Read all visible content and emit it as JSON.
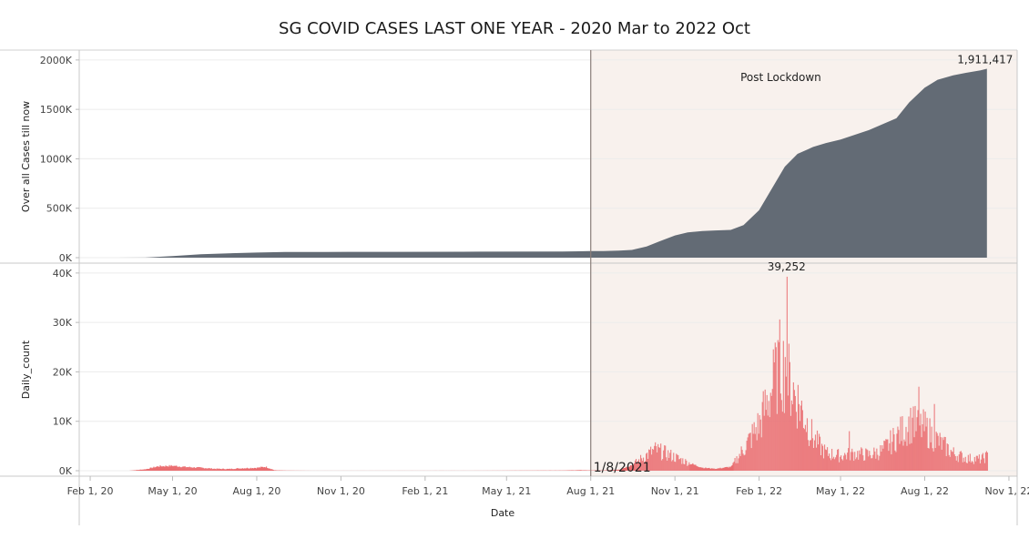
{
  "title": "SG COVID CASES LAST ONE YEAR - 2020 Mar to 2022 Oct",
  "chart_data": [
    {
      "type": "area",
      "title": "",
      "xlabel": "",
      "ylabel": "Over all Cases till now",
      "ylim": [
        0,
        2100000
      ],
      "yticks": [
        0,
        500000,
        1000000,
        1500000,
        2000000
      ],
      "ytick_labels": [
        "0K",
        "500K",
        "1000K",
        "1500K",
        "2000K"
      ],
      "color": "#636b75",
      "grid": "horizontal",
      "series": [
        {
          "points": [
            [
              "2020-03-01",
              100
            ],
            [
              "2020-04-01",
              1000
            ],
            [
              "2020-05-01",
              17000
            ],
            [
              "2020-06-01",
              35000
            ],
            [
              "2020-07-01",
              44000
            ],
            [
              "2020-08-01",
              52000
            ],
            [
              "2020-09-01",
              57000
            ],
            [
              "2020-10-15",
              58000
            ],
            [
              "2021-01-01",
              59000
            ],
            [
              "2021-04-01",
              61000
            ],
            [
              "2021-07-01",
              63000
            ],
            [
              "2021-08-01",
              66000
            ],
            [
              "2021-08-15",
              67000
            ],
            [
              "2021-09-01",
              71000
            ],
            [
              "2021-09-15",
              78000
            ],
            [
              "2021-10-01",
              112000
            ],
            [
              "2021-10-15",
              165000
            ],
            [
              "2021-11-01",
              225000
            ],
            [
              "2021-11-15",
              256000
            ],
            [
              "2021-12-01",
              270000
            ],
            [
              "2021-12-15",
              275000
            ],
            [
              "2022-01-01",
              281000
            ],
            [
              "2022-01-15",
              330000
            ],
            [
              "2022-02-01",
              480000
            ],
            [
              "2022-02-15",
              700000
            ],
            [
              "2022-03-01",
              920000
            ],
            [
              "2022-03-15",
              1050000
            ],
            [
              "2022-04-01",
              1120000
            ],
            [
              "2022-04-15",
              1160000
            ],
            [
              "2022-05-01",
              1195000
            ],
            [
              "2022-06-01",
              1290000
            ],
            [
              "2022-07-01",
              1410000
            ],
            [
              "2022-07-15",
              1570000
            ],
            [
              "2022-08-01",
              1720000
            ],
            [
              "2022-08-15",
              1800000
            ],
            [
              "2022-09-01",
              1845000
            ],
            [
              "2022-09-15",
              1870000
            ],
            [
              "2022-10-01",
              1895000
            ],
            [
              "2022-10-08",
              1911417
            ]
          ]
        }
      ],
      "annotations": [
        {
          "text": "1,911,417",
          "date": "2022-10-08",
          "value": 1911417
        },
        {
          "text": "Post Lockdown",
          "date": "2022-01-01",
          "value": 1900000
        }
      ]
    },
    {
      "type": "bar",
      "title": "",
      "xlabel": "Date",
      "ylabel": "Daily_count",
      "ylim": [
        0,
        42000
      ],
      "yticks": [
        0,
        10000,
        20000,
        30000,
        40000
      ],
      "ytick_labels": [
        "0K",
        "10K",
        "20K",
        "30K",
        "40K"
      ],
      "color": "#e8585c",
      "grid": "horizontal",
      "series": [
        {
          "weekly_points": [
            [
              "2020-03-15",
              20
            ],
            [
              "2020-04-01",
              300
            ],
            [
              "2020-04-15",
              900
            ],
            [
              "2020-05-01",
              1000
            ],
            [
              "2020-05-15",
              750
            ],
            [
              "2020-06-01",
              600
            ],
            [
              "2020-06-15",
              400
            ],
            [
              "2020-07-01",
              350
            ],
            [
              "2020-07-15",
              500
            ],
            [
              "2020-08-01",
              600
            ],
            [
              "2020-08-10",
              800
            ],
            [
              "2020-08-20",
              100
            ],
            [
              "2020-09-01",
              40
            ],
            [
              "2020-10-01",
              10
            ],
            [
              "2021-01-01",
              15
            ],
            [
              "2021-04-01",
              20
            ],
            [
              "2021-07-01",
              60
            ],
            [
              "2021-07-20",
              120
            ],
            [
              "2021-08-01",
              80
            ],
            [
              "2021-08-15",
              60
            ],
            [
              "2021-09-01",
              250
            ],
            [
              "2021-09-15",
              1200
            ],
            [
              "2021-10-01",
              3200
            ],
            [
              "2021-10-10",
              4200
            ],
            [
              "2021-10-20",
              3600
            ],
            [
              "2021-11-01",
              2700
            ],
            [
              "2021-11-15",
              1600
            ],
            [
              "2021-12-01",
              600
            ],
            [
              "2021-12-15",
              400
            ],
            [
              "2022-01-01",
              800
            ],
            [
              "2022-01-15",
              4500
            ],
            [
              "2022-02-01",
              9500
            ],
            [
              "2022-02-15",
              17000
            ],
            [
              "2022-02-24",
              22000
            ],
            [
              "2022-03-01",
              20000
            ],
            [
              "2022-03-15",
              14000
            ],
            [
              "2022-04-01",
              6500
            ],
            [
              "2022-04-15",
              3500
            ],
            [
              "2022-05-01",
              3000
            ],
            [
              "2022-05-15",
              3500
            ],
            [
              "2022-06-01",
              3200
            ],
            [
              "2022-06-15",
              4000
            ],
            [
              "2022-07-01",
              7000
            ],
            [
              "2022-07-15",
              9500
            ],
            [
              "2022-08-01",
              8500
            ],
            [
              "2022-08-15",
              6000
            ],
            [
              "2022-09-01",
              3500
            ],
            [
              "2022-09-15",
              2500
            ],
            [
              "2022-10-01",
              2300
            ],
            [
              "2022-10-08",
              3000
            ]
          ],
          "peaks": [
            [
              "2022-02-19",
              25000
            ],
            [
              "2022-02-22",
              26000
            ],
            [
              "2022-03-01",
              23000
            ],
            [
              "2022-03-03",
              39252
            ],
            [
              "2022-05-10",
              8000
            ],
            [
              "2022-07-19",
              13000
            ],
            [
              "2022-07-25",
              17000
            ],
            [
              "2022-08-11",
              13500
            ]
          ]
        }
      ],
      "annotations": [
        {
          "text": "39,252",
          "date": "2022-03-03",
          "value": 39252
        },
        {
          "text": "1/8/2021",
          "date": "2021-08-01",
          "value": 0
        }
      ]
    }
  ],
  "x_axis": {
    "label": "Date",
    "ticks": [
      {
        "date": "2020-02-01",
        "label": "Feb 1, 20"
      },
      {
        "date": "2020-05-01",
        "label": "May 1, 20"
      },
      {
        "date": "2020-08-01",
        "label": "Aug 1, 20"
      },
      {
        "date": "2020-11-01",
        "label": "Nov 1, 20"
      },
      {
        "date": "2021-02-01",
        "label": "Feb 1, 21"
      },
      {
        "date": "2021-05-01",
        "label": "May 1, 21"
      },
      {
        "date": "2021-08-01",
        "label": "Aug 1, 21"
      },
      {
        "date": "2021-11-01",
        "label": "Nov 1, 21"
      },
      {
        "date": "2022-02-01",
        "label": "Feb 1, 22"
      },
      {
        "date": "2022-05-01",
        "label": "May 1, 22"
      },
      {
        "date": "2022-08-01",
        "label": "Aug 1, 22"
      },
      {
        "date": "2022-11-01",
        "label": "Nov 1, 22"
      }
    ],
    "range": [
      "2020-01-20",
      "2022-11-10"
    ]
  },
  "reference_line": {
    "date": "2021-08-01",
    "label": "1/8/2021"
  },
  "shaded_region": {
    "from": "2021-08-01",
    "to": "2022-11-10",
    "label": "Post Lockdown",
    "color": "#f8f1ed"
  }
}
